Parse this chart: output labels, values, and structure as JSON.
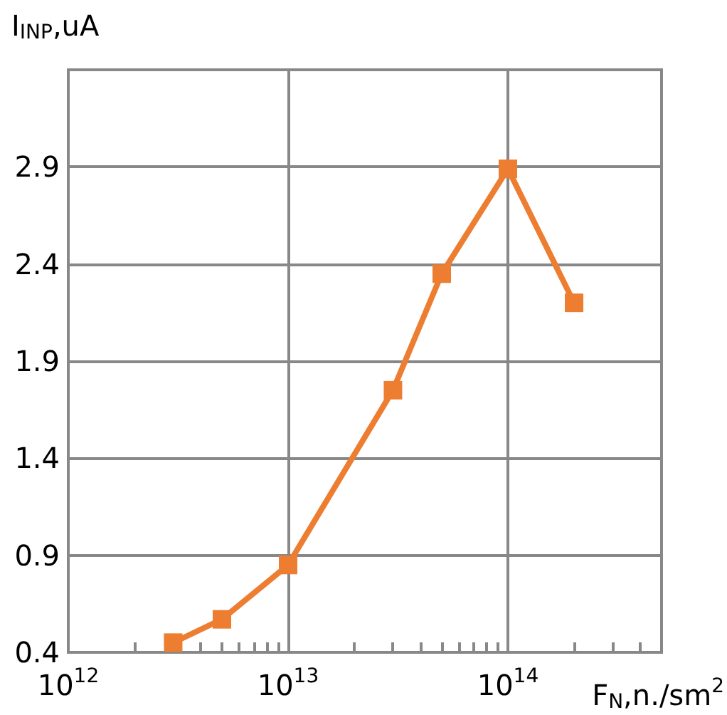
{
  "chart_data": {
    "type": "line",
    "xlabel": "F$_{N}$,n./sm$^{2}$",
    "ylabel": "I$_{INP}$,uA",
    "log": "x",
    "x": [
      3000000000000.0,
      5000000000000.0,
      10000000000000.0,
      30000000000000.0,
      50000000000000.0,
      100000000000000.0,
      200000000000000.0
    ],
    "series": [
      {
        "color": "#ed7d31",
        "values": [
          0.45,
          0.57,
          0.85,
          1.75,
          2.35,
          2.89,
          2.2
        ]
      }
    ],
    "xlim": [
      1000000000000.0,
      500000000000000.0
    ],
    "xticks": [
      {
        "value": 1000000000000.0,
        "label": "10$^{12}$"
      },
      {
        "value": 2000000000000.0,
        "label": null
      },
      {
        "value": 3000000000000.0,
        "label": null
      },
      {
        "value": 4000000000000.0,
        "label": null
      },
      {
        "value": 5000000000000.0,
        "label": null
      },
      {
        "value": 6000000000000.0,
        "label": null
      },
      {
        "value": 7000000000000.0,
        "label": null
      },
      {
        "value": 8000000000000.0,
        "label": null
      },
      {
        "value": 9000000000000.0,
        "label": null
      },
      {
        "value": 10000000000000.0,
        "label": "10$^{13}$"
      },
      {
        "value": 20000000000000.0,
        "label": null
      },
      {
        "value": 30000000000000.0,
        "label": null
      },
      {
        "value": 40000000000000.0,
        "label": null
      },
      {
        "value": 50000000000000.0,
        "label": null
      },
      {
        "value": 60000000000000.0,
        "label": null
      },
      {
        "value": 70000000000000.0,
        "label": null
      },
      {
        "value": 80000000000000.0,
        "label": null
      },
      {
        "value": 90000000000000.0,
        "label": null
      },
      {
        "value": 100000000000000.0,
        "label": "10$^{14}$"
      },
      {
        "value": 200000000000000.0,
        "label": null
      },
      {
        "value": 300000000000000.0,
        "label": null
      },
      {
        "value": 400000000000000.0,
        "label": null
      }
    ],
    "ylim": [
      0.4,
      3.4
    ],
    "yticks": [
      0.4,
      0.9,
      1.4,
      1.9,
      2.4,
      2.9,
      {
        "value": 3.4,
        "label": null
      }
    ],
    "grid": true,
    "marker": "square",
    "line_style": "solid"
  }
}
